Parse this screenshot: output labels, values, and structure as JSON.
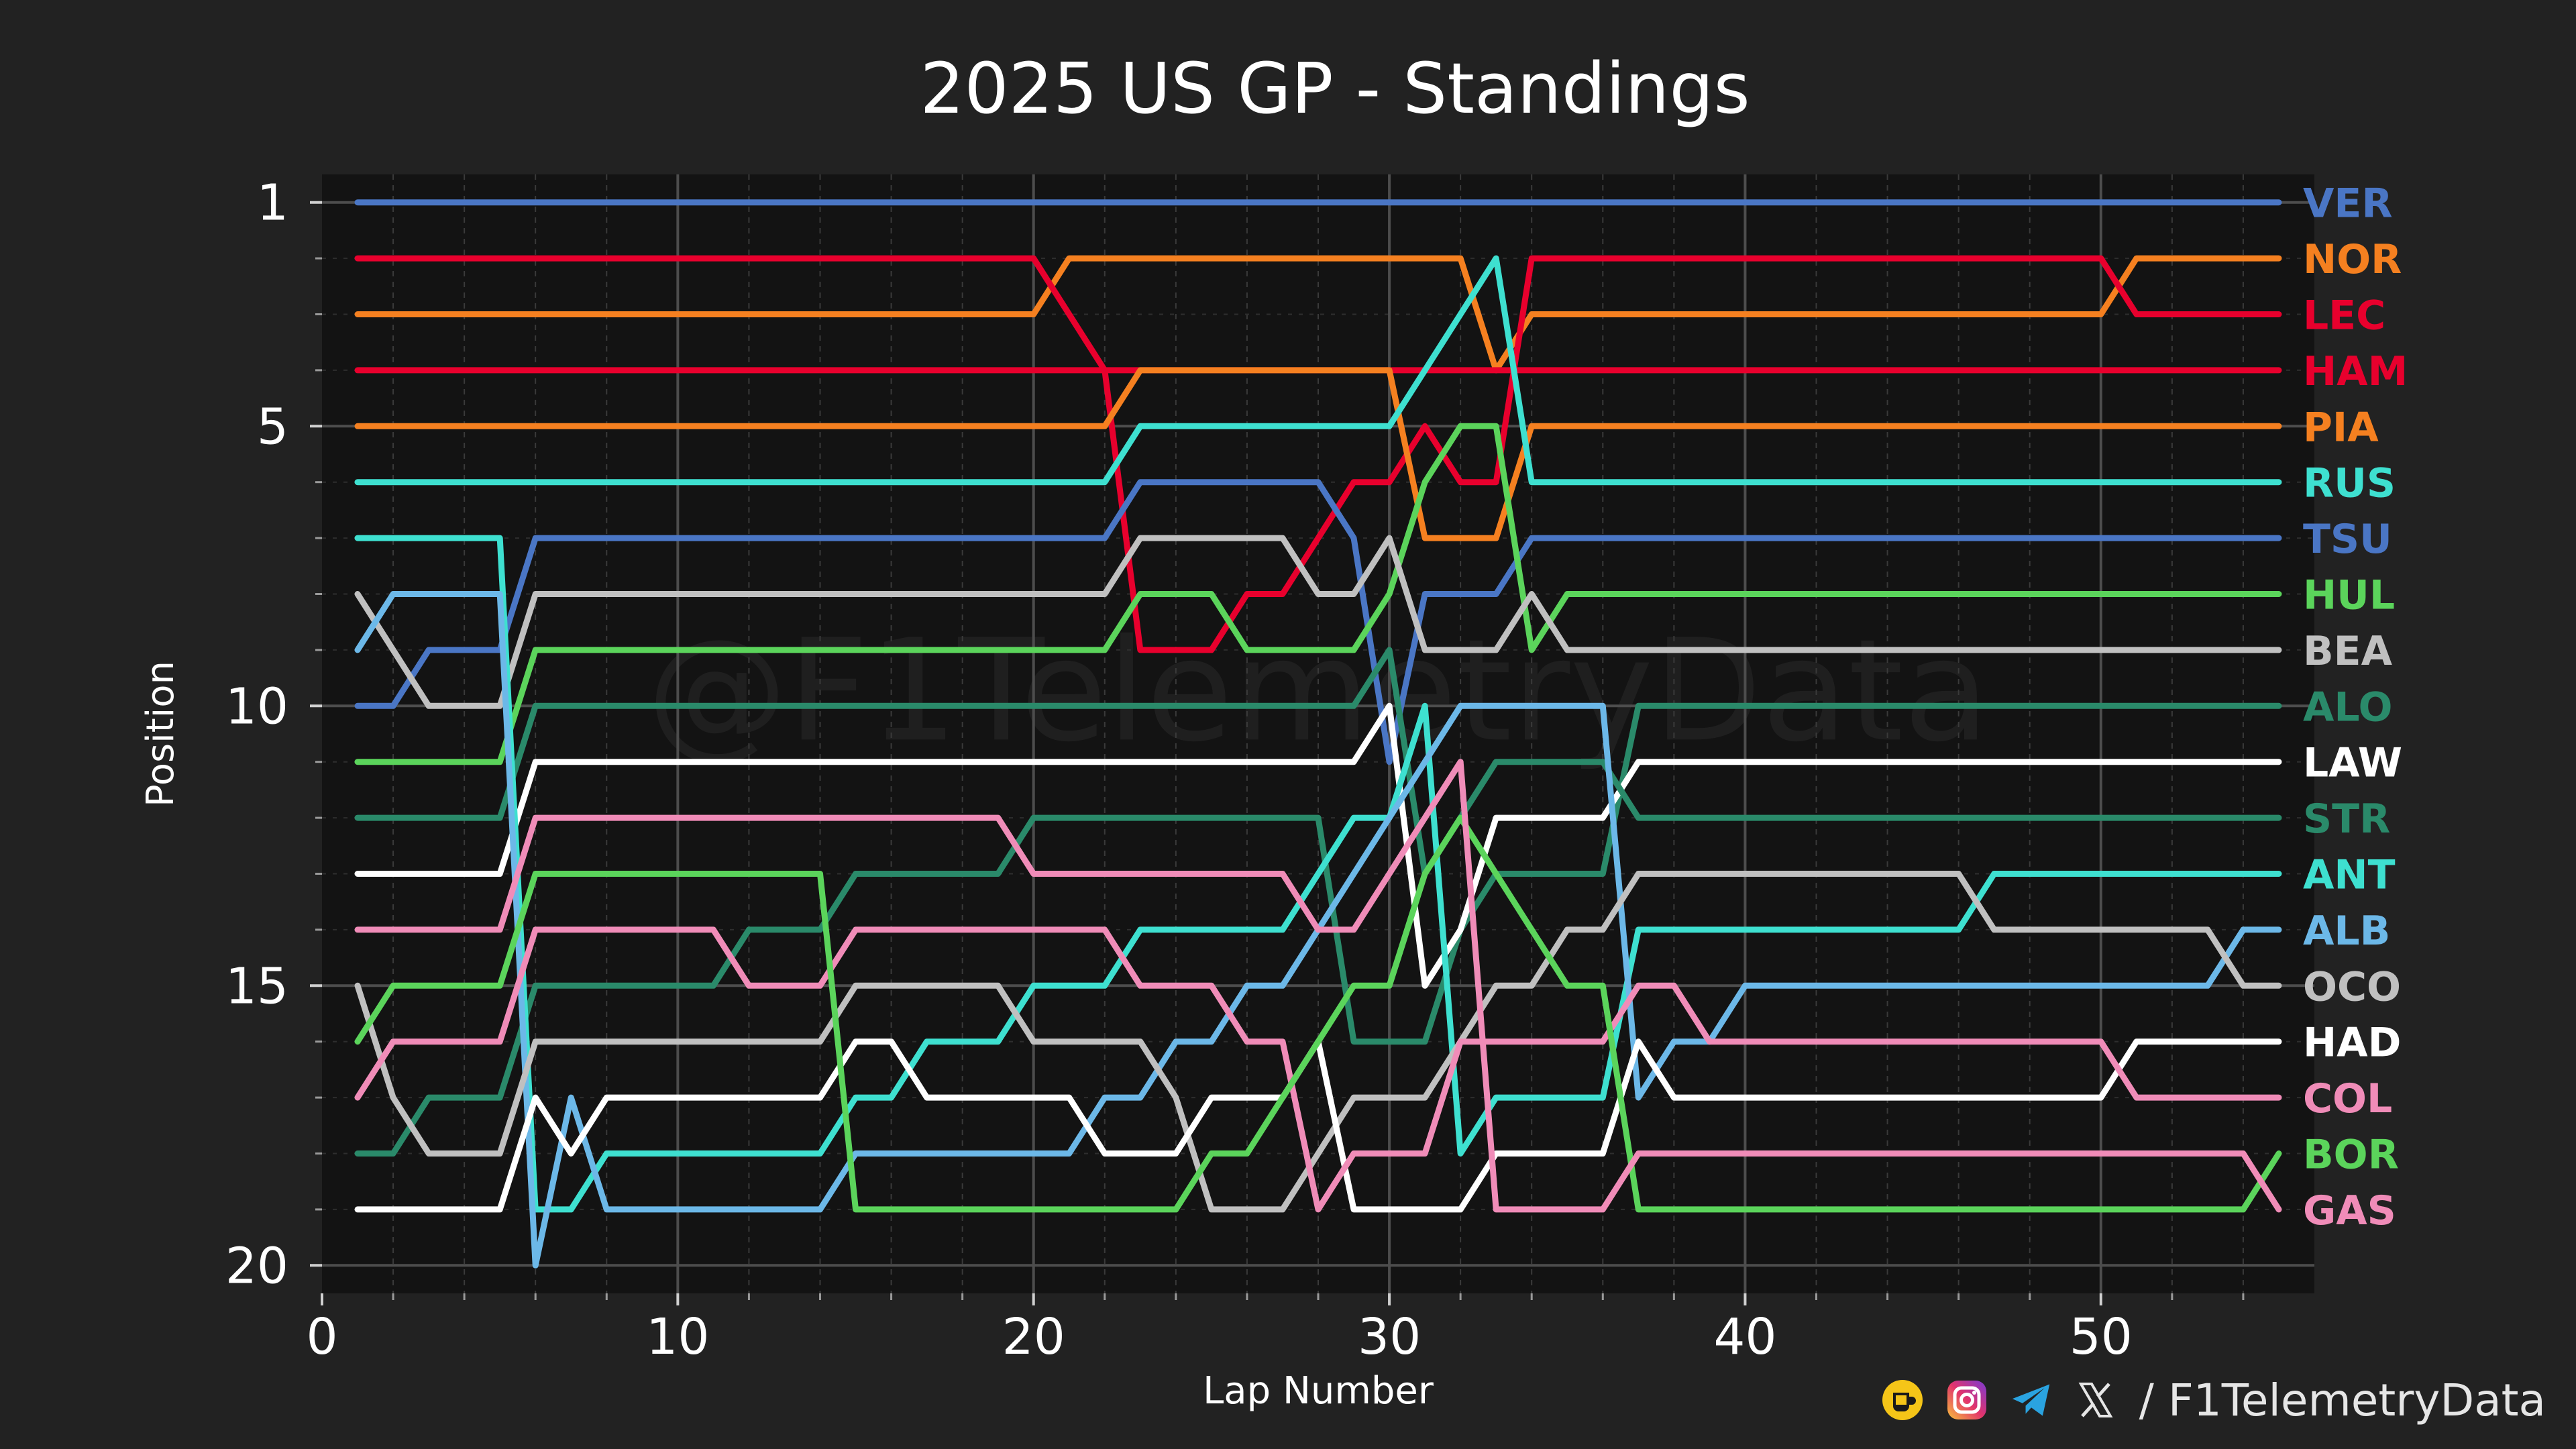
{
  "chart_data": {
    "type": "line",
    "title": "2025 US GP - Standings",
    "xlabel": "Lap Number",
    "ylabel": "Position",
    "xlim": [
      0,
      56
    ],
    "ylim": [
      20.5,
      0.5
    ],
    "xticks": [
      0,
      10,
      20,
      30,
      40,
      50
    ],
    "yticks": [
      1,
      5,
      10,
      15,
      20
    ],
    "grid": true,
    "watermark": "@F1TelemetryData",
    "series": [
      {
        "name": "VER",
        "color": "#4a76c5",
        "values": [
          [
            1,
            1
          ],
          [
            55,
            1
          ]
        ]
      },
      {
        "name": "NOR",
        "color": "#f58020",
        "values": [
          [
            1,
            3
          ],
          [
            20,
            3
          ],
          [
            21,
            2
          ],
          [
            32,
            2
          ],
          [
            33,
            4
          ],
          [
            34,
            3
          ],
          [
            50,
            3
          ],
          [
            51,
            2
          ],
          [
            55,
            2
          ]
        ]
      },
      {
        "name": "LEC",
        "color": "#e8002d",
        "values": [
          [
            1,
            2
          ],
          [
            20,
            2
          ],
          [
            21,
            3
          ],
          [
            22,
            4
          ],
          [
            23,
            9
          ],
          [
            25,
            9
          ],
          [
            26,
            8
          ],
          [
            27,
            8
          ],
          [
            28,
            7
          ],
          [
            29,
            6
          ],
          [
            30,
            6
          ],
          [
            31,
            5
          ],
          [
            32,
            6
          ],
          [
            33,
            6
          ],
          [
            34,
            2
          ],
          [
            50,
            2
          ],
          [
            51,
            3
          ],
          [
            55,
            3
          ]
        ]
      },
      {
        "name": "HAM",
        "color": "#e8002d",
        "values": [
          [
            1,
            4
          ],
          [
            55,
            4
          ]
        ]
      },
      {
        "name": "PIA",
        "color": "#f58020",
        "values": [
          [
            1,
            5
          ],
          [
            22,
            5
          ],
          [
            23,
            4
          ],
          [
            29,
            4
          ],
          [
            30,
            4
          ],
          [
            31,
            7
          ],
          [
            32,
            7
          ],
          [
            33,
            7
          ],
          [
            34,
            5
          ],
          [
            55,
            5
          ]
        ]
      },
      {
        "name": "RUS",
        "color": "#3ee0d0",
        "values": [
          [
            1,
            6
          ],
          [
            22,
            6
          ],
          [
            23,
            5
          ],
          [
            30,
            5
          ],
          [
            31,
            4
          ],
          [
            32,
            3
          ],
          [
            33,
            2
          ],
          [
            34,
            6
          ],
          [
            55,
            6
          ]
        ]
      },
      {
        "name": "TSU",
        "color": "#4a76c5",
        "values": [
          [
            1,
            10
          ],
          [
            2,
            10
          ],
          [
            3,
            9
          ],
          [
            5,
            9
          ],
          [
            6,
            7
          ],
          [
            22,
            7
          ],
          [
            23,
            6
          ],
          [
            28,
            6
          ],
          [
            29,
            7
          ],
          [
            30,
            11
          ],
          [
            31,
            8
          ],
          [
            32,
            8
          ],
          [
            33,
            8
          ],
          [
            34,
            7
          ],
          [
            55,
            7
          ]
        ]
      },
      {
        "name": "HUL",
        "color": "#5bd45b",
        "values": [
          [
            1,
            11
          ],
          [
            5,
            11
          ],
          [
            6,
            9
          ],
          [
            22,
            9
          ],
          [
            23,
            8
          ],
          [
            25,
            8
          ],
          [
            26,
            9
          ],
          [
            29,
            9
          ],
          [
            30,
            8
          ],
          [
            31,
            6
          ],
          [
            32,
            5
          ],
          [
            33,
            5
          ],
          [
            34,
            9
          ],
          [
            35,
            8
          ],
          [
            55,
            8
          ]
        ]
      },
      {
        "name": "BEA",
        "color": "#c0c0c0",
        "values": [
          [
            1,
            8
          ],
          [
            2,
            9
          ],
          [
            3,
            10
          ],
          [
            5,
            10
          ],
          [
            6,
            8
          ],
          [
            22,
            8
          ],
          [
            23,
            7
          ],
          [
            27,
            7
          ],
          [
            28,
            8
          ],
          [
            29,
            8
          ],
          [
            30,
            7
          ],
          [
            31,
            9
          ],
          [
            33,
            9
          ],
          [
            34,
            8
          ],
          [
            35,
            9
          ],
          [
            55,
            9
          ]
        ]
      },
      {
        "name": "ALO",
        "color": "#2a8a6a",
        "values": [
          [
            1,
            18
          ],
          [
            2,
            18
          ],
          [
            3,
            17
          ],
          [
            5,
            17
          ],
          [
            6,
            15
          ],
          [
            11,
            15
          ],
          [
            12,
            14
          ],
          [
            14,
            14
          ],
          [
            15,
            13
          ],
          [
            19,
            13
          ],
          [
            20,
            12
          ],
          [
            28,
            12
          ],
          [
            29,
            16
          ],
          [
            31,
            16
          ],
          [
            32,
            14
          ],
          [
            33,
            13
          ],
          [
            36,
            13
          ],
          [
            37,
            10
          ],
          [
            55,
            10
          ]
        ]
      },
      {
        "name": "LAW",
        "color": "#ffffff",
        "values": [
          [
            1,
            13
          ],
          [
            5,
            13
          ],
          [
            6,
            11
          ],
          [
            29,
            11
          ],
          [
            30,
            10
          ],
          [
            31,
            15
          ],
          [
            32,
            14
          ],
          [
            33,
            12
          ],
          [
            36,
            12
          ],
          [
            37,
            11
          ],
          [
            55,
            11
          ]
        ]
      },
      {
        "name": "STR",
        "color": "#2a8a6a",
        "values": [
          [
            1,
            12
          ],
          [
            5,
            12
          ],
          [
            6,
            10
          ],
          [
            29,
            10
          ],
          [
            30,
            9
          ],
          [
            31,
            13
          ],
          [
            32,
            12
          ],
          [
            33,
            11
          ],
          [
            36,
            11
          ],
          [
            37,
            12
          ],
          [
            55,
            12
          ]
        ]
      },
      {
        "name": "ANT",
        "color": "#3ee0d0",
        "values": [
          [
            1,
            7
          ],
          [
            5,
            7
          ],
          [
            6,
            19
          ],
          [
            7,
            19
          ],
          [
            8,
            18
          ],
          [
            14,
            18
          ],
          [
            15,
            17
          ],
          [
            16,
            17
          ],
          [
            17,
            16
          ],
          [
            19,
            16
          ],
          [
            20,
            15
          ],
          [
            22,
            15
          ],
          [
            23,
            14
          ],
          [
            27,
            14
          ],
          [
            28,
            13
          ],
          [
            29,
            12
          ],
          [
            30,
            12
          ],
          [
            31,
            10
          ],
          [
            32,
            18
          ],
          [
            33,
            17
          ],
          [
            36,
            17
          ],
          [
            37,
            14
          ],
          [
            46,
            14
          ],
          [
            47,
            13
          ],
          [
            55,
            13
          ]
        ]
      },
      {
        "name": "ALB",
        "color": "#6cb8e8",
        "values": [
          [
            1,
            9
          ],
          [
            2,
            8
          ],
          [
            5,
            8
          ],
          [
            6,
            20
          ],
          [
            7,
            17
          ],
          [
            8,
            19
          ],
          [
            14,
            19
          ],
          [
            15,
            18
          ],
          [
            21,
            18
          ],
          [
            22,
            17
          ],
          [
            23,
            17
          ],
          [
            24,
            16
          ],
          [
            25,
            16
          ],
          [
            26,
            15
          ],
          [
            27,
            15
          ],
          [
            28,
            14
          ],
          [
            29,
            13
          ],
          [
            30,
            12
          ],
          [
            31,
            11
          ],
          [
            32,
            10
          ],
          [
            36,
            10
          ],
          [
            37,
            17
          ],
          [
            38,
            16
          ],
          [
            39,
            16
          ],
          [
            40,
            15
          ],
          [
            53,
            15
          ],
          [
            54,
            14
          ],
          [
            55,
            14
          ]
        ]
      },
      {
        "name": "OCO",
        "color": "#c0c0c0",
        "values": [
          [
            1,
            15
          ],
          [
            2,
            17
          ],
          [
            3,
            18
          ],
          [
            5,
            18
          ],
          [
            6,
            16
          ],
          [
            14,
            16
          ],
          [
            15,
            15
          ],
          [
            19,
            15
          ],
          [
            20,
            16
          ],
          [
            23,
            16
          ],
          [
            24,
            17
          ],
          [
            25,
            19
          ],
          [
            27,
            19
          ],
          [
            28,
            18
          ],
          [
            29,
            17
          ],
          [
            31,
            17
          ],
          [
            32,
            16
          ],
          [
            33,
            15
          ],
          [
            34,
            15
          ],
          [
            35,
            14
          ],
          [
            36,
            14
          ],
          [
            37,
            13
          ],
          [
            46,
            13
          ],
          [
            47,
            14
          ],
          [
            53,
            14
          ],
          [
            54,
            15
          ],
          [
            55,
            15
          ]
        ]
      },
      {
        "name": "HAD",
        "color": "#ffffff",
        "values": [
          [
            1,
            19
          ],
          [
            5,
            19
          ],
          [
            6,
            17
          ],
          [
            7,
            18
          ],
          [
            8,
            17
          ],
          [
            14,
            17
          ],
          [
            15,
            16
          ],
          [
            16,
            16
          ],
          [
            17,
            17
          ],
          [
            21,
            17
          ],
          [
            22,
            18
          ],
          [
            24,
            18
          ],
          [
            25,
            17
          ],
          [
            27,
            17
          ],
          [
            28,
            16
          ],
          [
            29,
            19
          ],
          [
            32,
            19
          ],
          [
            33,
            18
          ],
          [
            36,
            18
          ],
          [
            37,
            16
          ],
          [
            38,
            17
          ],
          [
            50,
            17
          ],
          [
            51,
            16
          ],
          [
            55,
            16
          ]
        ]
      },
      {
        "name": "COL",
        "color": "#f08cb8",
        "values": [
          [
            1,
            17
          ],
          [
            2,
            16
          ],
          [
            5,
            16
          ],
          [
            6,
            14
          ],
          [
            11,
            14
          ],
          [
            12,
            15
          ],
          [
            14,
            15
          ],
          [
            15,
            14
          ],
          [
            22,
            14
          ],
          [
            23,
            15
          ],
          [
            25,
            15
          ],
          [
            26,
            16
          ],
          [
            27,
            16
          ],
          [
            28,
            19
          ],
          [
            29,
            18
          ],
          [
            31,
            18
          ],
          [
            32,
            16
          ],
          [
            33,
            16
          ],
          [
            36,
            16
          ],
          [
            37,
            15
          ],
          [
            38,
            15
          ],
          [
            39,
            16
          ],
          [
            50,
            16
          ],
          [
            51,
            17
          ],
          [
            53,
            17
          ],
          [
            54,
            17
          ],
          [
            55,
            17
          ]
        ]
      },
      {
        "name": "BOR",
        "color": "#5bd45b",
        "values": [
          [
            1,
            16
          ],
          [
            2,
            15
          ],
          [
            5,
            15
          ],
          [
            6,
            13
          ],
          [
            14,
            13
          ],
          [
            15,
            19
          ],
          [
            24,
            19
          ],
          [
            25,
            18
          ],
          [
            26,
            18
          ],
          [
            27,
            17
          ],
          [
            29,
            15
          ],
          [
            30,
            15
          ],
          [
            31,
            13
          ],
          [
            32,
            12
          ],
          [
            33,
            13
          ],
          [
            34,
            14
          ],
          [
            35,
            15
          ],
          [
            36,
            15
          ],
          [
            37,
            19
          ],
          [
            54,
            19
          ],
          [
            55,
            18
          ]
        ]
      },
      {
        "name": "GAS",
        "color": "#f08cb8",
        "values": [
          [
            1,
            14
          ],
          [
            5,
            14
          ],
          [
            6,
            12
          ],
          [
            19,
            12
          ],
          [
            20,
            13
          ],
          [
            27,
            13
          ],
          [
            28,
            14
          ],
          [
            29,
            14
          ],
          [
            30,
            13
          ],
          [
            31,
            12
          ],
          [
            32,
            11
          ],
          [
            33,
            19
          ],
          [
            36,
            19
          ],
          [
            37,
            18
          ],
          [
            53,
            18
          ],
          [
            54,
            18
          ],
          [
            55,
            19
          ]
        ]
      }
    ],
    "legend_order": [
      "VER",
      "NOR",
      "LEC",
      "HAM",
      "PIA",
      "RUS",
      "TSU",
      "HUL",
      "BEA",
      "ALO",
      "LAW",
      "STR",
      "ANT",
      "ALB",
      "OCO",
      "HAD",
      "COL",
      "BOR",
      "GAS"
    ]
  },
  "footer": {
    "handle": "/ F1TelemetryData",
    "icons": [
      "kofi-icon",
      "instagram-icon",
      "telegram-icon",
      "x-icon"
    ],
    "colors": {
      "kofi": "#f5c518",
      "telegram": "#2aa3e0",
      "instagram": "#d63a7a"
    }
  }
}
